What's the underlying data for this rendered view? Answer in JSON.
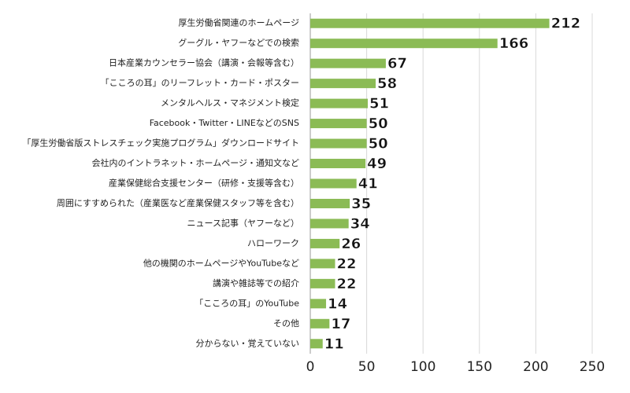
{
  "chart_data": {
    "type": "barh",
    "categories": [
      "厚生労働省関連のホームページ",
      "グーグル・ヤフーなどでの検索",
      "日本産業カウンセラー協会（講演・会報等含む）",
      "「こころの耳」のリーフレット・カード・ポスター",
      "メンタルヘルス・マネジメント検定",
      "Facebook・Twitter・LINEなどのSNS",
      "「厚生労働省版ストレスチェック実施プログラム」ダウンロードサイト",
      "会社内のイントラネット・ホームページ・通知文など",
      "産業保健総合支援センター（研修・支援等含む）",
      "周囲にすすめられた（産業医など産業保健スタッフ等を含む）",
      "ニュース記事（ヤフーなど）",
      "ハローワーク",
      "他の機関のホームページやYouTubeなど",
      "講演や雑誌等での紹介",
      "「こころの耳」のYouTube",
      "その他",
      "分からない・覚えていない"
    ],
    "values": [
      212,
      166,
      67,
      58,
      51,
      50,
      50,
      49,
      41,
      35,
      34,
      26,
      22,
      22,
      14,
      17,
      11
    ],
    "color": "#8bbb55",
    "xlim": [
      0,
      250
    ],
    "xticks": [
      0,
      50,
      100,
      150,
      200,
      250
    ],
    "grid": true
  }
}
